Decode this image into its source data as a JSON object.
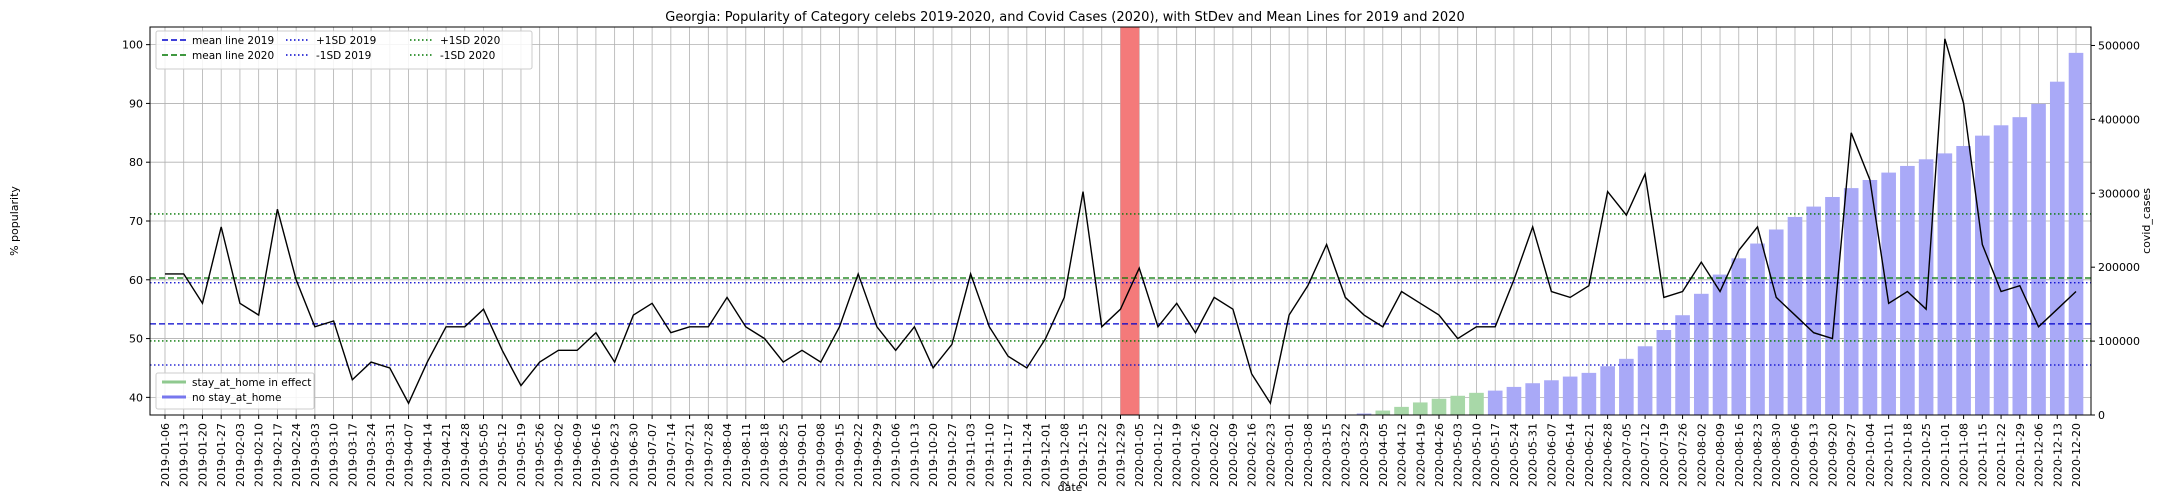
{
  "chart_data": {
    "type": "line",
    "title": "Georgia: Popularity of Category celebs 2019-2020, and Covid Cases (2020), with StDev and Mean Lines for 2019 and 2020",
    "xlabel": "date",
    "ylabel": "% popularity",
    "y2label": "covid_cases",
    "ylim": [
      37,
      103
    ],
    "y2lim": [
      0,
      525000
    ],
    "yticks": [
      40,
      50,
      60,
      70,
      80,
      90,
      100
    ],
    "y2ticks": [
      0,
      100000,
      200000,
      300000,
      400000,
      500000
    ],
    "grid": true,
    "legend_top_placement": "upper-left",
    "legend_bottom_placement": "lower-left",
    "x": [
      "2019-01-06",
      "2019-01-13",
      "2019-01-20",
      "2019-01-27",
      "2019-02-03",
      "2019-02-10",
      "2019-02-17",
      "2019-02-24",
      "2019-03-03",
      "2019-03-10",
      "2019-03-17",
      "2019-03-24",
      "2019-03-31",
      "2019-04-07",
      "2019-04-14",
      "2019-04-21",
      "2019-04-28",
      "2019-05-05",
      "2019-05-12",
      "2019-05-19",
      "2019-05-26",
      "2019-06-02",
      "2019-06-09",
      "2019-06-16",
      "2019-06-23",
      "2019-06-30",
      "2019-07-07",
      "2019-07-14",
      "2019-07-21",
      "2019-07-28",
      "2019-08-04",
      "2019-08-11",
      "2019-08-18",
      "2019-08-25",
      "2019-09-01",
      "2019-09-08",
      "2019-09-15",
      "2019-09-22",
      "2019-09-29",
      "2019-10-06",
      "2019-10-13",
      "2019-10-20",
      "2019-10-27",
      "2019-11-03",
      "2019-11-10",
      "2019-11-17",
      "2019-11-24",
      "2019-12-01",
      "2019-12-08",
      "2019-12-15",
      "2019-12-22",
      "2019-12-29",
      "2020-01-05",
      "2020-01-12",
      "2020-01-19",
      "2020-01-26",
      "2020-02-02",
      "2020-02-09",
      "2020-02-16",
      "2020-02-23",
      "2020-03-01",
      "2020-03-08",
      "2020-03-15",
      "2020-03-22",
      "2020-03-29",
      "2020-04-05",
      "2020-04-12",
      "2020-04-19",
      "2020-04-26",
      "2020-05-03",
      "2020-05-10",
      "2020-05-17",
      "2020-05-24",
      "2020-05-31",
      "2020-06-07",
      "2020-06-14",
      "2020-06-21",
      "2020-06-28",
      "2020-07-05",
      "2020-07-12",
      "2020-07-19",
      "2020-07-26",
      "2020-08-02",
      "2020-08-09",
      "2020-08-16",
      "2020-08-23",
      "2020-08-30",
      "2020-09-06",
      "2020-09-13",
      "2020-09-20",
      "2020-09-27",
      "2020-10-04",
      "2020-10-11",
      "2020-10-18",
      "2020-10-25",
      "2020-11-01",
      "2020-11-08",
      "2020-11-15",
      "2020-11-22",
      "2020-11-29",
      "2020-12-06",
      "2020-12-13",
      "2020-12-20"
    ],
    "popularity": [
      61,
      61,
      56,
      69,
      56,
      54,
      72,
      60,
      52,
      53,
      43,
      46,
      45,
      39,
      46,
      52,
      52,
      55,
      48,
      42,
      46,
      48,
      48,
      51,
      46,
      54,
      56,
      51,
      52,
      52,
      57,
      52,
      50,
      46,
      48,
      46,
      52,
      61,
      52,
      48,
      52,
      45,
      49,
      61,
      52,
      47,
      45,
      50,
      57,
      75,
      52,
      55,
      62,
      52,
      56,
      51,
      57,
      55,
      44,
      39,
      54,
      59,
      66,
      57,
      54,
      52,
      58,
      56,
      54,
      50,
      52,
      52,
      60,
      69,
      58,
      57,
      59,
      75,
      71,
      78,
      57,
      58,
      63,
      58,
      65,
      69,
      57,
      54,
      51,
      50,
      85,
      77,
      56,
      58,
      55,
      101,
      90,
      66,
      58,
      59,
      52,
      55,
      58
    ],
    "covid_cases": [
      null,
      null,
      null,
      null,
      null,
      null,
      null,
      null,
      null,
      null,
      null,
      null,
      null,
      null,
      null,
      null,
      null,
      null,
      null,
      null,
      null,
      null,
      null,
      null,
      null,
      null,
      null,
      null,
      null,
      null,
      null,
      null,
      null,
      null,
      null,
      null,
      null,
      null,
      null,
      null,
      null,
      null,
      null,
      null,
      null,
      null,
      null,
      null,
      null,
      null,
      null,
      null,
      null,
      null,
      null,
      null,
      null,
      null,
      null,
      null,
      null,
      null,
      null,
      null,
      2000,
      6000,
      11000,
      17000,
      22000,
      26000,
      30000,
      33000,
      38000,
      43000,
      47000,
      52000,
      57000,
      66000,
      76000,
      93000,
      115000,
      135000,
      164000,
      190000,
      212000,
      232000,
      251000,
      268000,
      282000,
      295000,
      307000,
      318000,
      328000,
      337000,
      346000,
      354000,
      364000,
      378000,
      392000,
      403000,
      421000,
      451000,
      490000
    ],
    "covid_stay_at_home": [
      false,
      false,
      false,
      false,
      false,
      false,
      false,
      false,
      false,
      false,
      false,
      false,
      false,
      false,
      false,
      false,
      false,
      false,
      false,
      false,
      false,
      false,
      false,
      false,
      false,
      false,
      false,
      false,
      false,
      false,
      false,
      false,
      false,
      false,
      false,
      false,
      false,
      false,
      false,
      false,
      false,
      false,
      false,
      false,
      false,
      false,
      false,
      false,
      false,
      false,
      false,
      false,
      false,
      false,
      false,
      false,
      false,
      false,
      false,
      false,
      false,
      false,
      false,
      false,
      false,
      true,
      true,
      true,
      true,
      true,
      true,
      false,
      false,
      false,
      false,
      false,
      false,
      false,
      false,
      false,
      false,
      false,
      false,
      false,
      false,
      false,
      false,
      false,
      false,
      false,
      false,
      false,
      false,
      false,
      false,
      false,
      false,
      false,
      false,
      false,
      false,
      false,
      false
    ],
    "highlight_date": "2019-12-29",
    "reference_lines": {
      "mean_2019": 52.5,
      "plus1sd_2019": 59.5,
      "minus1sd_2019": 45.5,
      "mean_2020": 60.3,
      "plus1sd_2020": 71.2,
      "minus1sd_2020": 49.6
    },
    "legend_lines": [
      {
        "key": "mean_2019",
        "label": "mean line 2019",
        "color": "#0000cc",
        "style": "dashed"
      },
      {
        "key": "mean_2020",
        "label": "mean line 2020",
        "color": "#007700",
        "style": "dashed"
      },
      {
        "key": "plus1sd_2019",
        "label": "+1SD 2019",
        "color": "#0000cc",
        "style": "dotted"
      },
      {
        "key": "minus1sd_2019",
        "label": "-1SD 2019",
        "color": "#0000cc",
        "style": "dotted"
      },
      {
        "key": "plus1sd_2020",
        "label": "+1SD 2020",
        "color": "#007700",
        "style": "dotted"
      },
      {
        "key": "minus1sd_2020",
        "label": "-1SD 2020",
        "color": "#007700",
        "style": "dotted"
      }
    ],
    "legend_bars": [
      {
        "label": "stay_at_home in effect",
        "color": "#8fc98f"
      },
      {
        "label": "no stay_at_home",
        "color": "#7777ee"
      }
    ],
    "colors": {
      "popularity_line": "#000000",
      "bar_stay_at_home": "#a8d8a8",
      "bar_no_stay_at_home": "#a9a9f7",
      "highlight_band": "#f47a7a",
      "grid": "#b0b0b0"
    }
  }
}
